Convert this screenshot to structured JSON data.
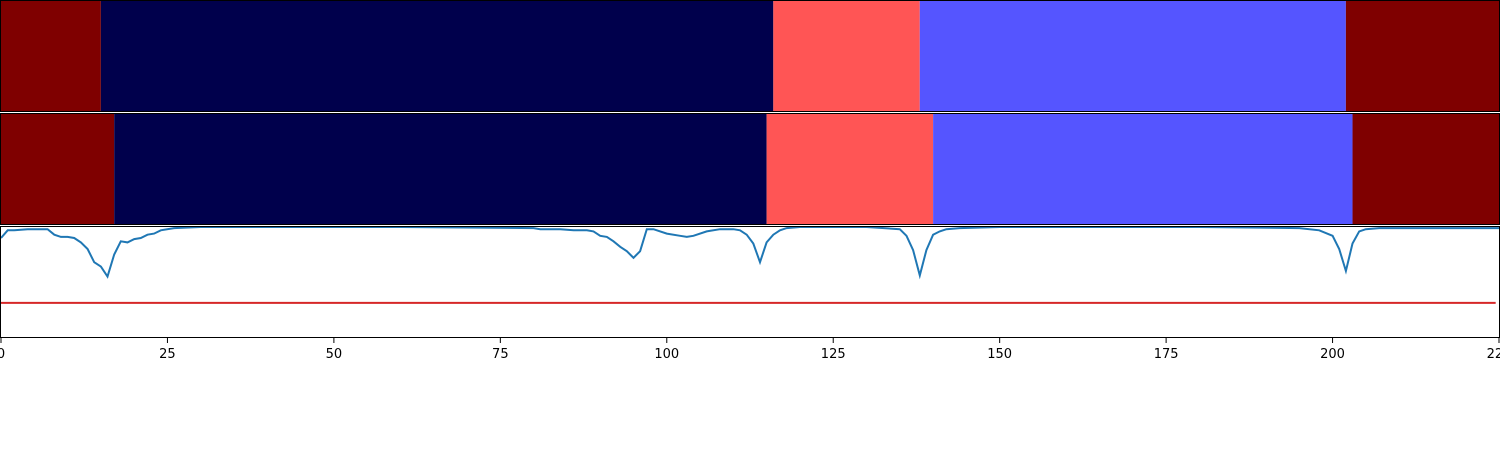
{
  "chart_data": [
    {
      "type": "heatmap",
      "xlim": [
        0,
        225
      ],
      "segments": [
        {
          "start": 0,
          "end": 15,
          "color": "#7f0000"
        },
        {
          "start": 15,
          "end": 116,
          "color": "#00004c"
        },
        {
          "start": 116,
          "end": 138,
          "color": "#ff5555"
        },
        {
          "start": 138,
          "end": 202,
          "color": "#5555ff"
        },
        {
          "start": 202,
          "end": 225,
          "color": "#7f0000"
        }
      ]
    },
    {
      "type": "heatmap",
      "xlim": [
        0,
        225
      ],
      "segments": [
        {
          "start": 0,
          "end": 17,
          "color": "#7f0000"
        },
        {
          "start": 17,
          "end": 115,
          "color": "#00004c"
        },
        {
          "start": 115,
          "end": 140,
          "color": "#ff5555"
        },
        {
          "start": 140,
          "end": 203,
          "color": "#5555ff"
        },
        {
          "start": 203,
          "end": 225,
          "color": "#7f0000"
        }
      ]
    },
    {
      "type": "line",
      "xlim": [
        0,
        225
      ],
      "ylim": [
        0,
        1
      ],
      "xticks": [
        0,
        25,
        50,
        75,
        100,
        125,
        150,
        175,
        200,
        225
      ],
      "xtick_labels": [
        "0",
        "25",
        "50",
        "75",
        "100",
        "125",
        "150",
        "175",
        "200",
        "225"
      ],
      "threshold": {
        "value": 0.31,
        "color": "#d62728"
      },
      "series": [
        {
          "color": "#1f77b4",
          "x": [
            0,
            1,
            2,
            4,
            5,
            6,
            7,
            8,
            9,
            10,
            11,
            12,
            13,
            14,
            15,
            16,
            17,
            18,
            19,
            20,
            21,
            22,
            23,
            24,
            26,
            30,
            40,
            60,
            80,
            81,
            82,
            84,
            86,
            88,
            89,
            90,
            91,
            92,
            93,
            94,
            95,
            96,
            97,
            98,
            100,
            102,
            103,
            104,
            106,
            108,
            110,
            111,
            112,
            113,
            114,
            115,
            116,
            117,
            118,
            120,
            130,
            135,
            136,
            137,
            138,
            139,
            140,
            141,
            142,
            144,
            150,
            160,
            180,
            195,
            198,
            200,
            201,
            202,
            203,
            204,
            205,
            207,
            210,
            225
          ],
          "y": [
            0.9,
            0.97,
            0.97,
            0.98,
            0.98,
            0.98,
            0.98,
            0.93,
            0.91,
            0.91,
            0.9,
            0.86,
            0.8,
            0.68,
            0.64,
            0.55,
            0.75,
            0.87,
            0.86,
            0.89,
            0.9,
            0.93,
            0.94,
            0.97,
            0.99,
            1.0,
            1.0,
            1.0,
            0.99,
            0.98,
            0.98,
            0.98,
            0.97,
            0.97,
            0.96,
            0.92,
            0.91,
            0.87,
            0.82,
            0.78,
            0.72,
            0.78,
            0.98,
            0.98,
            0.94,
            0.92,
            0.91,
            0.92,
            0.96,
            0.98,
            0.98,
            0.97,
            0.93,
            0.85,
            0.68,
            0.86,
            0.93,
            0.97,
            0.99,
            1.0,
            1.0,
            0.98,
            0.92,
            0.79,
            0.56,
            0.79,
            0.93,
            0.96,
            0.98,
            0.99,
            1.0,
            1.0,
            1.0,
            0.99,
            0.97,
            0.92,
            0.8,
            0.6,
            0.85,
            0.96,
            0.98,
            0.99,
            0.99,
            0.99
          ]
        }
      ]
    }
  ]
}
